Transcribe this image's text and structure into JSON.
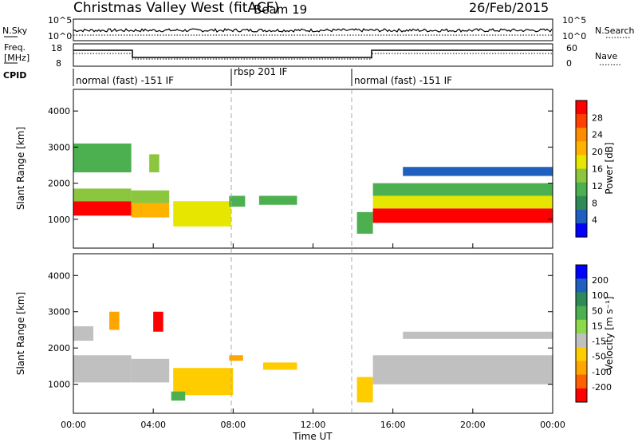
{
  "header": {
    "station": "Christmas Valley West (fitACF)",
    "beam": "Beam 19",
    "date": "26/Feb/2015"
  },
  "top_panels": {
    "nsky_label": "N.Sky",
    "nsky_ticks": [
      "10^5",
      "10^0"
    ],
    "nsearch_label": "N.Search",
    "nsearch_ticks": [
      "10^5",
      "10^0"
    ],
    "freq_label_1": "Freq.",
    "freq_label_2": "[MHz]",
    "freq_ticks": [
      "18",
      "8"
    ],
    "nave_label": "Nave",
    "nave_ticks": [
      "60",
      "0"
    ],
    "cpid_label": "CPID",
    "cpid_segments": [
      "normal (fast) -151 IF",
      "rbsp 201 IF",
      "normal (fast) -151 IF"
    ]
  },
  "chart_data": [
    {
      "type": "heatmap",
      "panel": "power",
      "ylabel": "Slant Range [km]",
      "ylim": [
        200,
        4600
      ],
      "yticks": [
        "1000",
        "2000",
        "3000",
        "4000"
      ],
      "colorbar_label": "Power [dB]",
      "colorbar_ticks": [
        "28",
        "24",
        "20",
        "16",
        "12",
        "8",
        "4"
      ],
      "colorbar_colors": [
        "#ff0000",
        "#ff4000",
        "#ff8c00",
        "#ffb300",
        "#e6e600",
        "#8cc63f",
        "#4caf50",
        "#2e8b57",
        "#1f5fbf",
        "#0000ff"
      ],
      "regions": [
        {
          "x0": 0.0,
          "x1": 2.9,
          "y0": 1100,
          "y1": 1500,
          "level": 28
        },
        {
          "x0": 0.0,
          "x1": 2.9,
          "y0": 1500,
          "y1": 1850,
          "level": 12
        },
        {
          "x0": 0.0,
          "x1": 2.9,
          "y0": 2300,
          "y1": 3100,
          "level": 8
        },
        {
          "x0": 2.9,
          "x1": 4.8,
          "y0": 1050,
          "y1": 1450,
          "level": 20
        },
        {
          "x0": 2.9,
          "x1": 4.8,
          "y0": 1450,
          "y1": 1800,
          "level": 12
        },
        {
          "x0": 3.8,
          "x1": 4.3,
          "y0": 2300,
          "y1": 2800,
          "level": 12
        },
        {
          "x0": 5.0,
          "x1": 7.9,
          "y0": 800,
          "y1": 1500,
          "level": 16
        },
        {
          "x0": 7.8,
          "x1": 8.6,
          "y0": 1350,
          "y1": 1650,
          "level": 8
        },
        {
          "x0": 9.3,
          "x1": 11.2,
          "y0": 1400,
          "y1": 1650,
          "level": 8
        },
        {
          "x0": 14.2,
          "x1": 15.0,
          "y0": 600,
          "y1": 1200,
          "level": 8
        },
        {
          "x0": 15.0,
          "x1": 24.0,
          "y0": 900,
          "y1": 1300,
          "level": 28
        },
        {
          "x0": 15.0,
          "x1": 24.0,
          "y0": 1300,
          "y1": 1650,
          "level": 16
        },
        {
          "x0": 15.0,
          "x1": 24.0,
          "y0": 1650,
          "y1": 2000,
          "level": 8
        },
        {
          "x0": 16.5,
          "x1": 24.0,
          "y0": 2200,
          "y1": 2450,
          "level": 4
        }
      ]
    },
    {
      "type": "heatmap",
      "panel": "velocity",
      "ylabel": "Slant Range [km]",
      "ylim": [
        200,
        4600
      ],
      "yticks": [
        "1000",
        "2000",
        "3000",
        "4000"
      ],
      "xlabel": "Time UT",
      "xticks": [
        "00:00",
        "04:00",
        "08:00",
        "12:00",
        "16:00",
        "20:00",
        "00:00"
      ],
      "colorbar_label": "Velocity [m s⁻¹]",
      "colorbar_ticks": [
        "200",
        "100",
        "50",
        "15",
        "-15",
        "-50",
        "-100",
        "-200"
      ],
      "colorbar_colors": [
        "#0000ff",
        "#1f5fbf",
        "#2e8b57",
        "#4caf50",
        "#8cd94c",
        "#c0c0c0",
        "#ffcc00",
        "#ffa500",
        "#ff6000",
        "#ff0000"
      ],
      "regions": [
        {
          "x0": 0.0,
          "x1": 2.9,
          "y0": 1050,
          "y1": 1800,
          "level": 0
        },
        {
          "x0": 0.0,
          "x1": 1.0,
          "y0": 2200,
          "y1": 2600,
          "level": 0
        },
        {
          "x0": 2.9,
          "x1": 4.8,
          "y0": 1050,
          "y1": 1700,
          "level": 0
        },
        {
          "x0": 4.0,
          "x1": 4.5,
          "y0": 2450,
          "y1": 3000,
          "level": -150
        },
        {
          "x0": 1.8,
          "x1": 2.3,
          "y0": 2500,
          "y1": 3000,
          "level": -80
        },
        {
          "x0": 5.0,
          "x1": 8.0,
          "y0": 700,
          "y1": 1450,
          "level": -40
        },
        {
          "x0": 4.9,
          "x1": 5.6,
          "y0": 550,
          "y1": 800,
          "level": 30
        },
        {
          "x0": 7.8,
          "x1": 8.5,
          "y0": 1650,
          "y1": 1800,
          "level": -80
        },
        {
          "x0": 9.5,
          "x1": 11.2,
          "y0": 1400,
          "y1": 1600,
          "level": -40
        },
        {
          "x0": 14.2,
          "x1": 15.0,
          "y0": 500,
          "y1": 1200,
          "level": -40
        },
        {
          "x0": 15.0,
          "x1": 24.0,
          "y0": 1000,
          "y1": 1800,
          "level": 0
        },
        {
          "x0": 16.5,
          "x1": 24.0,
          "y0": 2250,
          "y1": 2450,
          "level": 0
        }
      ]
    }
  ]
}
